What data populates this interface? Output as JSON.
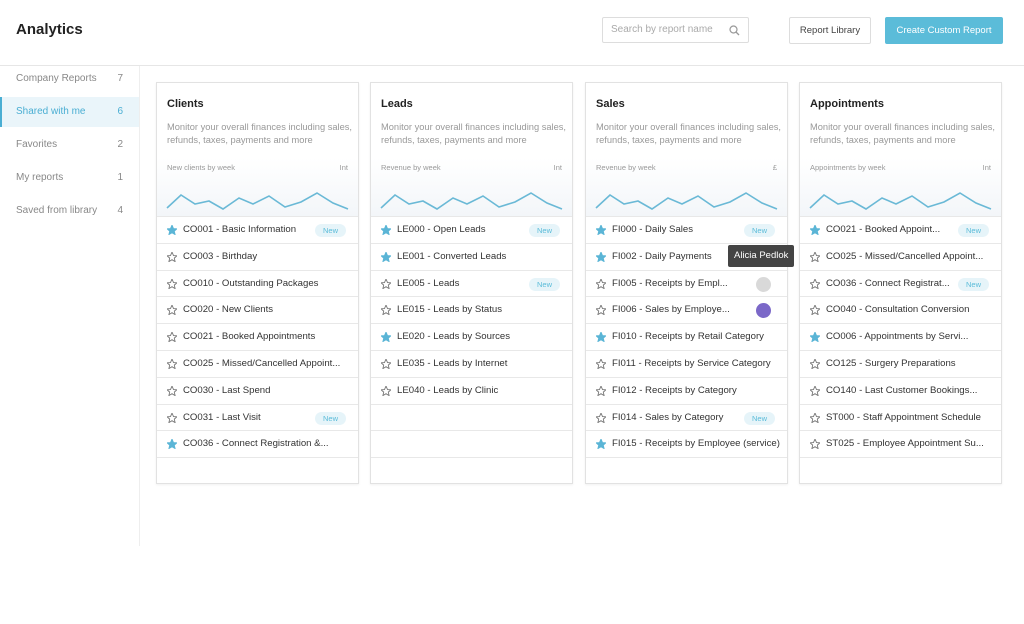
{
  "header": {
    "title": "Analytics",
    "search_placeholder": "Search by report name",
    "buttons": [
      "Report Library",
      "Create Custom Report"
    ]
  },
  "sidebar": [
    {
      "label": "Company Reports",
      "count": 7
    },
    {
      "label": "Shared with me",
      "count": 6,
      "active": true
    },
    {
      "label": "Favorites",
      "count": 2
    },
    {
      "label": "My reports",
      "count": 1
    },
    {
      "label": "Saved from library",
      "count": 4
    }
  ],
  "cards": [
    {
      "title": "Clients",
      "description": "Monitor your overall finances including sales, refunds, taxes, payments and more",
      "chart_label": "New clients by week",
      "chart_unit": "Int",
      "reports": [
        {
          "name": "CO001 - Basic Information",
          "starred": true,
          "badge": "New"
        },
        {
          "name": "CO003 - Birthday",
          "starred": false
        },
        {
          "name": "CO010 - Outstanding Packages",
          "starred": false
        },
        {
          "name": "CO020 - New Clients",
          "starred": false
        },
        {
          "name": "CO021 - Booked Appointments",
          "starred": false
        },
        {
          "name": "CO025 - Missed/Cancelled Appoint...",
          "starred": false
        },
        {
          "name": "CO030 - Last Spend",
          "starred": false
        },
        {
          "name": "CO031 - Last Visit",
          "starred": false,
          "badge": "New"
        },
        {
          "name": "CO036 - Connect Registration  &...",
          "starred": true
        }
      ]
    },
    {
      "title": "Leads",
      "description": "Monitor your overall finances including sales, refunds, taxes, payments and more",
      "chart_label": "Revenue by week",
      "chart_unit": "Int",
      "reports": [
        {
          "name": "LE000 - Open Leads",
          "starred": true,
          "badge": "New"
        },
        {
          "name": "LE001 - Converted Leads",
          "starred": true
        },
        {
          "name": "LE005 - Leads",
          "starred": false,
          "badge": "New"
        },
        {
          "name": "LE015 - Leads by Status",
          "starred": false
        },
        {
          "name": "LE020 - Leads by Sources",
          "starred": true
        },
        {
          "name": "LE035 - Leads by Internet",
          "starred": false
        },
        {
          "name": "LE040 - Leads by Clinic",
          "starred": false
        }
      ]
    },
    {
      "title": "Sales",
      "description": "Monitor your overall finances including sales, refunds, taxes, payments and more",
      "chart_label": "Revenue by week",
      "chart_unit": "£",
      "reports": [
        {
          "name": "FI000 - Daily Sales",
          "starred": true,
          "badge": "New"
        },
        {
          "name": "FI002 - Daily Payments",
          "starred": true
        },
        {
          "name": "FI005 - Receipts by Empl...",
          "starred": false,
          "avatar_color": "#d9d9d9",
          "tooltip": "Alicia Pedlok"
        },
        {
          "name": "FI006 - Sales by Employe...",
          "starred": false,
          "avatar_color": "#7b68c8"
        },
        {
          "name": "FI010 - Receipts by Retail Category",
          "starred": true
        },
        {
          "name": "FI011 - Receipts by Service Category",
          "starred": false
        },
        {
          "name": "FI012 - Receipts by Category",
          "starred": false
        },
        {
          "name": "FI014 - Sales by Category",
          "starred": false,
          "badge": "New"
        },
        {
          "name": "FI015 - Receipts by Employee (service)",
          "starred": true
        }
      ]
    },
    {
      "title": "Appointments",
      "description": "Monitor your overall finances including sales, refunds, taxes, payments and more",
      "chart_label": "Appointments by week",
      "chart_unit": "Int",
      "reports": [
        {
          "name": "CO021 - Booked Appoint...",
          "starred": true,
          "badge": "New"
        },
        {
          "name": "CO025 - Missed/Cancelled Appoint...",
          "starred": false
        },
        {
          "name": "CO036 - Connect Registrat...",
          "starred": false,
          "badge": "New"
        },
        {
          "name": "CO040 - Consultation Conversion",
          "starred": false
        },
        {
          "name": "CO006 - Appointments by Servi...",
          "starred": true
        },
        {
          "name": "CO125 - Surgery Preparations",
          "starred": false
        },
        {
          "name": "CO140 - Last Customer Bookings...",
          "starred": false
        },
        {
          "name": "ST000 - Staff Appointment Schedule",
          "starred": false
        },
        {
          "name": "ST025 - Employee Appointment Su...",
          "starred": false
        }
      ]
    }
  ]
}
